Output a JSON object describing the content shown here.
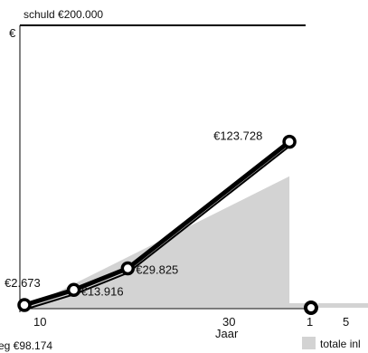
{
  "chart_data": {
    "type": "line",
    "ylabel": "€",
    "xlabel": "Jaar",
    "x_ticks": [
      "10",
      "30"
    ],
    "extra_ticks": [
      "1",
      "5"
    ],
    "ref_line": {
      "label": "schuld €200.000",
      "value": 200000
    },
    "xlim": [
      8,
      40
    ],
    "ylim": [
      0,
      210000
    ],
    "series": [
      {
        "style": "line-markers",
        "points": [
          {
            "x": 8.5,
            "y": 2673,
            "label": "€2.673"
          },
          {
            "x": 14,
            "y": 13916,
            "label": "€13.916"
          },
          {
            "x": 20,
            "y": 29825,
            "label": "€29.825"
          },
          {
            "x": 38,
            "y": 123728,
            "label": "€123.728"
          }
        ]
      },
      {
        "style": "area",
        "points": [
          {
            "x": 8.5,
            "y": 0
          },
          {
            "x": 38,
            "y": 98174
          }
        ]
      }
    ],
    "bottom_left_text": "eg €98.174",
    "legend": {
      "label": "totale inl",
      "color": "#d3d3d3",
      "placement": "bottom-right"
    }
  }
}
